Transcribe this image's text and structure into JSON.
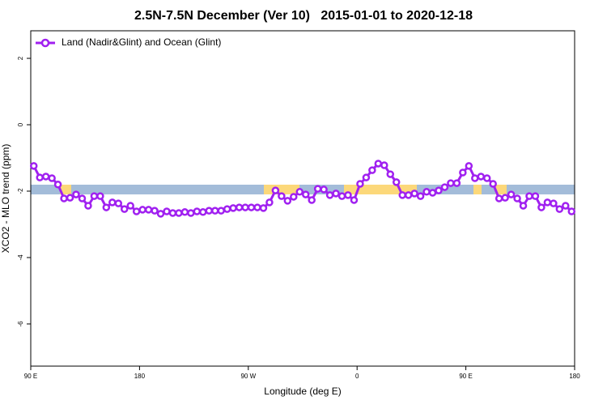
{
  "chart_data": {
    "type": "line",
    "title": "2.5N-7.5N December (Ver 10)   2015-01-01 to 2020-12-18",
    "x_label": "Longitude (deg E)",
    "y_label": "XCO2 - MLO trend (ppm)",
    "x": [
      92.5,
      97.5,
      102.5,
      107.5,
      112.5,
      117.5,
      122.5,
      127.5,
      132.5,
      137.5,
      142.5,
      147.5,
      152.5,
      157.5,
      162.5,
      167.5,
      172.5,
      177.5,
      182.5,
      187.5,
      192.5,
      197.5,
      202.5,
      207.5,
      212.5,
      217.5,
      222.5,
      227.5,
      232.5,
      237.5,
      242.5,
      247.5,
      252.5,
      257.5,
      262.5,
      267.5,
      272.5,
      277.5,
      282.5,
      287.5,
      292.5,
      297.5,
      302.5,
      307.5,
      312.5,
      317.5,
      322.5,
      327.5,
      332.5,
      337.5,
      342.5,
      347.5,
      352.5,
      357.5,
      362.5,
      367.5,
      372.5,
      377.5,
      382.5,
      387.5,
      392.5,
      397.5,
      402.5,
      407.5,
      412.5,
      417.5,
      422.5,
      427.5,
      432.5,
      437.5,
      442.5,
      447.5,
      452.5,
      457.5,
      462.5,
      467.5,
      472.5,
      477.5,
      482.5,
      487.5,
      492.5,
      497.5,
      502.5,
      507.5,
      512.5,
      517.5,
      522.5,
      527.5,
      532.5,
      537.5
    ],
    "series": [
      {
        "name": "Land (Nadir&Glint) and Ocean (Glint)",
        "color": "#a020f0",
        "values": [
          -1.24,
          -1.59,
          -1.56,
          -1.61,
          -1.8,
          -2.22,
          -2.2,
          -2.1,
          -2.22,
          -2.44,
          -2.15,
          -2.15,
          -2.49,
          -2.34,
          -2.37,
          -2.54,
          -2.44,
          -2.61,
          -2.56,
          -2.56,
          -2.59,
          -2.68,
          -2.61,
          -2.66,
          -2.66,
          -2.63,
          -2.66,
          -2.61,
          -2.63,
          -2.59,
          -2.59,
          -2.59,
          -2.54,
          -2.51,
          -2.49,
          -2.49,
          -2.49,
          -2.49,
          -2.51,
          -2.34,
          -1.98,
          -2.15,
          -2.29,
          -2.17,
          -2.02,
          -2.1,
          -2.27,
          -1.93,
          -1.95,
          -2.12,
          -2.07,
          -2.15,
          -2.12,
          -2.27,
          -1.78,
          -1.59,
          -1.37,
          -1.17,
          -1.22,
          -1.49,
          -1.73,
          -2.12,
          -2.12,
          -2.07,
          -2.15,
          -2.02,
          -2.05,
          -1.98,
          -1.88,
          -1.76,
          -1.76,
          -1.44,
          -1.24,
          -1.61,
          -1.56,
          -1.61,
          -1.78,
          -2.22,
          -2.2,
          -2.1,
          -2.22,
          -2.44,
          -2.15,
          -2.15,
          -2.49,
          -2.34,
          -2.37,
          -2.54,
          -2.44,
          -2.61
        ]
      }
    ],
    "xlim": [
      90,
      540
    ],
    "xticks": [
      {
        "value": 90,
        "label": "90 E"
      },
      180,
      {
        "value": 270,
        "label": "90 W"
      },
      {
        "value": 360,
        "label": "0"
      },
      {
        "value": 450,
        "label": "90 E"
      },
      {
        "value": 540,
        "label": "180"
      }
    ],
    "ylim": [
      2.83,
      -7.27
    ],
    "yticks": [
      2,
      0,
      -2,
      -4,
      -6
    ],
    "legend": "top-left"
  }
}
